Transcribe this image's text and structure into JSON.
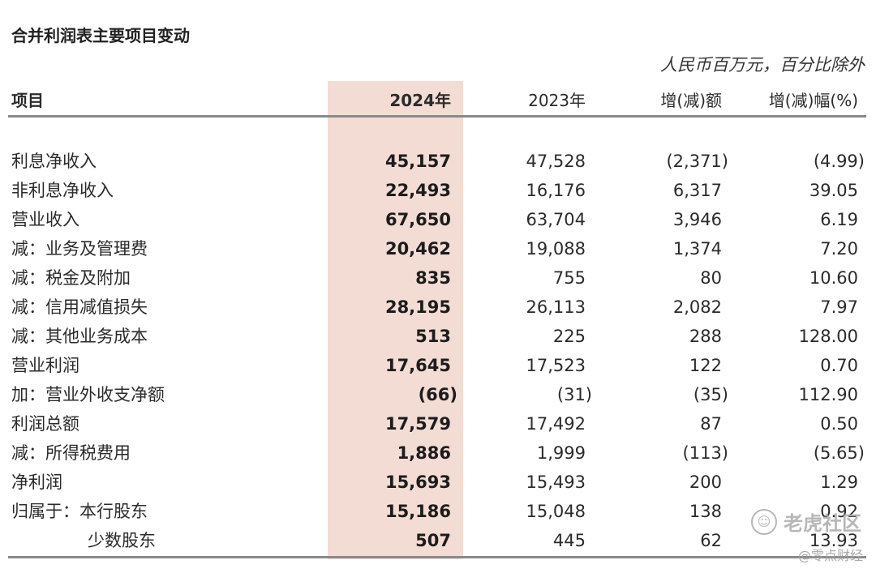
{
  "title": "合并利润表主要项目变动",
  "unit_note": "人民币百万元，百分比除外",
  "headers": {
    "item": "项目",
    "y2024": "2024年",
    "y2023": "2023年",
    "change": "增(减)额",
    "change_pct": "增(减)幅(%)"
  },
  "rows": [
    {
      "label": "利息净收入",
      "v2024": "45,157",
      "v2023": "47,528",
      "chg": "(2,371)",
      "pct": "(4.99)"
    },
    {
      "label": "非利息净收入",
      "v2024": "22,493",
      "v2023": "16,176",
      "chg": "6,317",
      "pct": "39.05"
    },
    {
      "label": "营业收入",
      "v2024": "67,650",
      "v2023": "63,704",
      "chg": "3,946",
      "pct": "6.19"
    },
    {
      "label": "减：业务及管理费",
      "v2024": "20,462",
      "v2023": "19,088",
      "chg": "1,374",
      "pct": "7.20"
    },
    {
      "label": "减：税金及附加",
      "v2024": "835",
      "v2023": "755",
      "chg": "80",
      "pct": "10.60"
    },
    {
      "label": "减：信用减值损失",
      "v2024": "28,195",
      "v2023": "26,113",
      "chg": "2,082",
      "pct": "7.97"
    },
    {
      "label": "减：其他业务成本",
      "v2024": "513",
      "v2023": "225",
      "chg": "288",
      "pct": "128.00"
    },
    {
      "label": "营业利润",
      "v2024": "17,645",
      "v2023": "17,523",
      "chg": "122",
      "pct": "0.70"
    },
    {
      "label": "加：营业外收支净额",
      "v2024": "(66)",
      "v2023": "(31)",
      "chg": "(35)",
      "pct": "112.90"
    },
    {
      "label": "利润总额",
      "v2024": "17,579",
      "v2023": "17,492",
      "chg": "87",
      "pct": "0.50"
    },
    {
      "label": "减：所得税费用",
      "v2024": "1,886",
      "v2023": "1,999",
      "chg": "(113)",
      "pct": "(5.65)"
    },
    {
      "label": "净利润",
      "v2024": "15,693",
      "v2023": "15,493",
      "chg": "200",
      "pct": "1.29"
    },
    {
      "label": "归属于：本行股东",
      "v2024": "15,186",
      "v2023": "15,048",
      "chg": "138",
      "pct": "0.92"
    },
    {
      "label": "少数股东",
      "v2024": "507",
      "v2023": "445",
      "chg": "62",
      "pct": "13.93"
    }
  ],
  "watermark": {
    "text": "老虎社区",
    "icon": "tiger-community-logo-icon",
    "sub": "@零点财经"
  },
  "colors": {
    "highlight": "#f2dcd4",
    "rule": "#8a8a8a"
  }
}
